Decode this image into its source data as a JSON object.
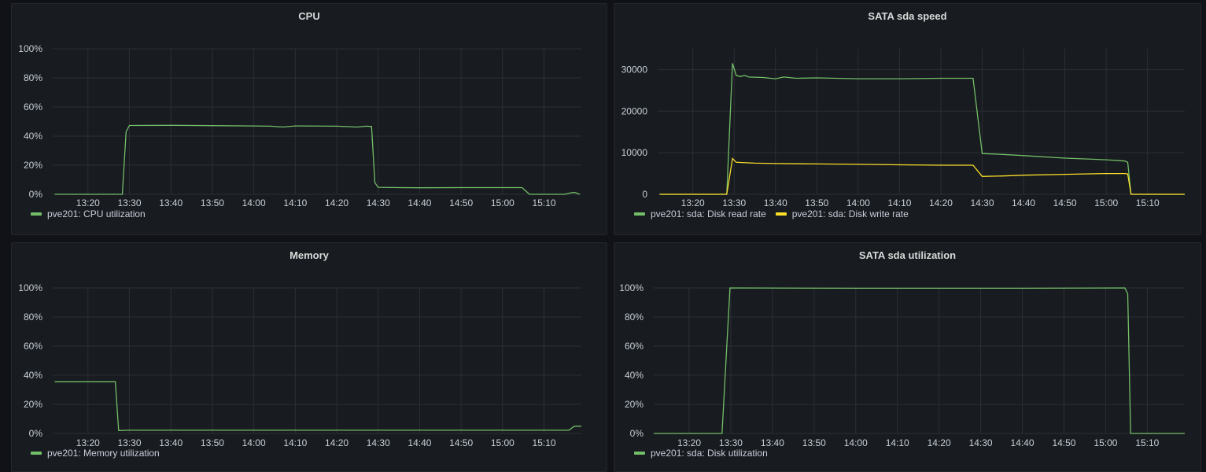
{
  "colors": {
    "green": "#73bf69",
    "yellow": "#fade2a",
    "grid": "#2c2f35"
  },
  "chart_data": [
    {
      "id": "cpu",
      "type": "line",
      "title": "CPU",
      "ylim": [
        0,
        100
      ],
      "yunit": "%",
      "yticks": [
        0,
        20,
        40,
        60,
        80,
        100
      ],
      "yticklabels": [
        "0%",
        "20%",
        "40%",
        "60%",
        "80%",
        "100%"
      ],
      "xlim_minutes": [
        11.5,
        139
      ],
      "xticks": [
        "13:20",
        "13:30",
        "13:40",
        "13:50",
        "14:00",
        "14:10",
        "14:20",
        "14:30",
        "14:40",
        "14:50",
        "15:00",
        "15:10"
      ],
      "series": [
        {
          "name": "pve201: CPU utilization",
          "color": "green",
          "points": [
            [
              12,
              0
            ],
            [
              28.3,
              0
            ],
            [
              29.2,
              43
            ],
            [
              30,
              47.3
            ],
            [
              40,
              47.4
            ],
            [
              50,
              47.2
            ],
            [
              60,
              47
            ],
            [
              64,
              46.8
            ],
            [
              67,
              46.2
            ],
            [
              70,
              47
            ],
            [
              80,
              46.8
            ],
            [
              85,
              46.2
            ],
            [
              87,
              46.8
            ],
            [
              88.4,
              46.6
            ],
            [
              89.2,
              8
            ],
            [
              90,
              4.8
            ],
            [
              95,
              4.6
            ],
            [
              100,
              4.5
            ],
            [
              110,
              4.6
            ],
            [
              120,
              4.6
            ],
            [
              124.7,
              4.6
            ],
            [
              126.5,
              0
            ],
            [
              135,
              0
            ],
            [
              136.8,
              1.2
            ],
            [
              137.5,
              1.2
            ],
            [
              138.6,
              0
            ]
          ]
        }
      ]
    },
    {
      "id": "speed",
      "type": "line",
      "title": "SATA sda speed",
      "ylim": [
        0,
        35000
      ],
      "yticks": [
        0,
        10000,
        20000,
        30000
      ],
      "yticklabels": [
        "0",
        "10000",
        "20000",
        "30000"
      ],
      "xlim_minutes": [
        11.5,
        139
      ],
      "xticks": [
        "13:20",
        "13:30",
        "13:40",
        "13:50",
        "14:00",
        "14:10",
        "14:20",
        "14:30",
        "14:40",
        "14:50",
        "15:00",
        "15:10"
      ],
      "series": [
        {
          "name": "pve201: sda: Disk read rate",
          "color": "green",
          "points": [
            [
              12,
              0
            ],
            [
              28.2,
              0
            ],
            [
              29.6,
              31500
            ],
            [
              30.5,
              28600
            ],
            [
              31.5,
              28300
            ],
            [
              32.5,
              28600
            ],
            [
              33.5,
              28200
            ],
            [
              37,
              28100
            ],
            [
              40,
              27800
            ],
            [
              42,
              28200
            ],
            [
              45,
              27900
            ],
            [
              50,
              28000
            ],
            [
              60,
              27800
            ],
            [
              70,
              27800
            ],
            [
              80,
              27900
            ],
            [
              86,
              27900
            ],
            [
              87.8,
              27900
            ],
            [
              90,
              9800
            ],
            [
              95,
              9600
            ],
            [
              100,
              9300
            ],
            [
              110,
              8700
            ],
            [
              120,
              8300
            ],
            [
              124.5,
              8000
            ],
            [
              125.2,
              7700
            ],
            [
              126,
              0
            ],
            [
              139,
              0
            ]
          ]
        },
        {
          "name": "pve201: sda: Disk write rate",
          "color": "yellow",
          "points": [
            [
              12,
              0
            ],
            [
              28.2,
              0
            ],
            [
              29.6,
              8600
            ],
            [
              30.5,
              7700
            ],
            [
              35,
              7500
            ],
            [
              40,
              7400
            ],
            [
              50,
              7300
            ],
            [
              60,
              7200
            ],
            [
              70,
              7100
            ],
            [
              80,
              7000
            ],
            [
              87.8,
              7000
            ],
            [
              90,
              4300
            ],
            [
              95,
              4400
            ],
            [
              100,
              4600
            ],
            [
              110,
              4800
            ],
            [
              120,
              5000
            ],
            [
              124.5,
              5000
            ],
            [
              125.2,
              4900
            ],
            [
              126,
              0
            ],
            [
              139,
              0
            ]
          ]
        }
      ]
    },
    {
      "id": "memory",
      "type": "line",
      "title": "Memory",
      "ylim": [
        0,
        100
      ],
      "yticks": [
        0,
        20,
        40,
        60,
        80,
        100
      ],
      "yticklabels": [
        "0%",
        "20%",
        "40%",
        "60%",
        "80%",
        "100%"
      ],
      "xlim_minutes": [
        11.5,
        139
      ],
      "xticks": [
        "13:20",
        "13:30",
        "13:40",
        "13:50",
        "14:00",
        "14:10",
        "14:20",
        "14:30",
        "14:40",
        "14:50",
        "15:00",
        "15:10"
      ],
      "series": [
        {
          "name": "pve201: Memory utilization",
          "color": "green",
          "points": [
            [
              12,
              35.5
            ],
            [
              26.6,
              35.5
            ],
            [
              27.4,
              2
            ],
            [
              30,
              2.2
            ],
            [
              60,
              2.2
            ],
            [
              100,
              2.2
            ],
            [
              136,
              2.2
            ],
            [
              137.3,
              5
            ],
            [
              139,
              5
            ]
          ]
        }
      ]
    },
    {
      "id": "util",
      "type": "line",
      "title": "SATA sda utilization",
      "ylim": [
        0,
        100
      ],
      "yticks": [
        0,
        20,
        40,
        60,
        80,
        100
      ],
      "yticklabels": [
        "0%",
        "20%",
        "40%",
        "60%",
        "80%",
        "100%"
      ],
      "xlim_minutes": [
        11.5,
        139
      ],
      "xticks": [
        "13:20",
        "13:30",
        "13:40",
        "13:50",
        "14:00",
        "14:10",
        "14:20",
        "14:30",
        "14:40",
        "14:50",
        "15:00",
        "15:10"
      ],
      "series": [
        {
          "name": "pve201: sda: Disk utilization",
          "color": "green",
          "points": [
            [
              11.5,
              0
            ],
            [
              27.9,
              0
            ],
            [
              29.8,
              100
            ],
            [
              60,
              99.8
            ],
            [
              100,
              99.8
            ],
            [
              124.6,
              100
            ],
            [
              125.3,
              96
            ],
            [
              126,
              0
            ],
            [
              139,
              0
            ]
          ]
        }
      ]
    }
  ]
}
